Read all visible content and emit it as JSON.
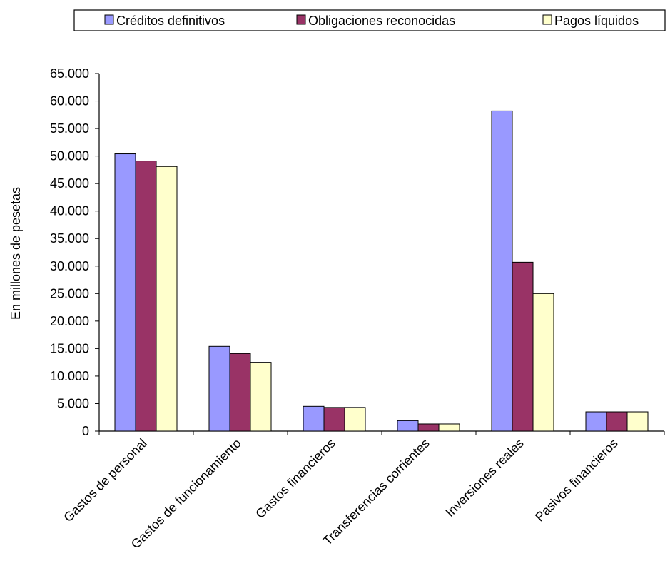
{
  "chart_data": {
    "type": "bar",
    "ylabel": "En millones de pesetas",
    "xlabel": "",
    "ylim": [
      0,
      65000
    ],
    "y_ticks": [
      {
        "value": 0,
        "label": "0"
      },
      {
        "value": 5000,
        "label": "5.000"
      },
      {
        "value": 10000,
        "label": "10.000"
      },
      {
        "value": 15000,
        "label": "15.000"
      },
      {
        "value": 20000,
        "label": "20.000"
      },
      {
        "value": 25000,
        "label": "25.000"
      },
      {
        "value": 30000,
        "label": "30.000"
      },
      {
        "value": 35000,
        "label": "35.000"
      },
      {
        "value": 40000,
        "label": "40.000"
      },
      {
        "value": 45000,
        "label": "45.000"
      },
      {
        "value": 50000,
        "label": "50.000"
      },
      {
        "value": 55000,
        "label": "55.000"
      },
      {
        "value": 60000,
        "label": "60.000"
      },
      {
        "value": 65000,
        "label": "65.000"
      }
    ],
    "categories": [
      "Gastos de personal",
      "Gastos de funcionamiento",
      "Gastos financieros",
      "Transferencias corrientes",
      "Inversiones reales",
      "Pasivos financieros"
    ],
    "series": [
      {
        "name": "Créditos definitivos",
        "color": "#9999ff",
        "values": [
          50400,
          15400,
          4500,
          1900,
          58200,
          3500
        ]
      },
      {
        "name": "Obligaciones reconocidas",
        "color": "#993366",
        "values": [
          49100,
          14100,
          4300,
          1300,
          30700,
          3500
        ]
      },
      {
        "name": "Pagos líquidos",
        "color": "#ffffcc",
        "values": [
          48100,
          12500,
          4300,
          1300,
          25000,
          3500
        ]
      }
    ],
    "legend_position": "top",
    "grid": false
  }
}
